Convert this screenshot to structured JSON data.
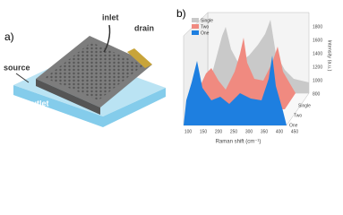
{
  "panel_a": {
    "label": "a)",
    "callouts": {
      "inlet": "inlet",
      "drain": "drain",
      "source": "source",
      "outlet": "outlet"
    }
  },
  "panel_b": {
    "label": "b)",
    "legend": [
      "Single",
      "Two",
      "One"
    ],
    "x_axis": {
      "title": "Raman shift (cm⁻¹)",
      "ticks": [
        "100",
        "150",
        "200",
        "250",
        "300",
        "350",
        "400",
        "450"
      ]
    },
    "y_axis": {
      "title": "Intensity (a.u.)",
      "ticks": [
        "1800",
        "1600",
        "1400",
        "1200",
        "1000",
        "800"
      ]
    },
    "depth_labels": [
      "Single",
      "Two",
      "One"
    ]
  }
}
